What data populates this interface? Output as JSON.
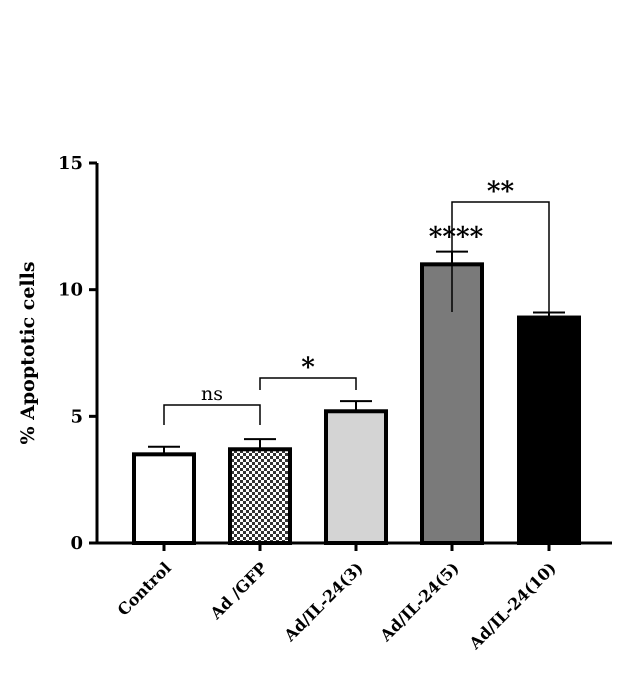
{
  "chart_data": {
    "type": "bar",
    "title": "",
    "xlabel": "",
    "ylabel": "% Apoptotic cells",
    "ylim": [
      0,
      15
    ],
    "yticks": [
      "0",
      "5",
      "10",
      "15"
    ],
    "categories": [
      "Control",
      "Ad /GFP",
      "Ad/IL-24(3)",
      "Ad/IL-24(5)",
      "Ad/IL-24(10)"
    ],
    "values": [
      3.5,
      3.7,
      5.2,
      11.0,
      8.9
    ],
    "errors": [
      0.3,
      0.4,
      0.4,
      0.5,
      0.2
    ],
    "fills": [
      "#ffffff",
      "checker",
      "#d4d4d4",
      "#7a7a7a",
      "#000000"
    ],
    "bar_labels": [
      "",
      "",
      "",
      "****",
      ""
    ],
    "comparisons": [
      {
        "from": 0,
        "to": 1,
        "label": "ns"
      },
      {
        "from": 1,
        "to": 2,
        "label": "*"
      },
      {
        "from": 3,
        "to": 4,
        "label": "**"
      }
    ],
    "grid": false,
    "legend": "none"
  }
}
